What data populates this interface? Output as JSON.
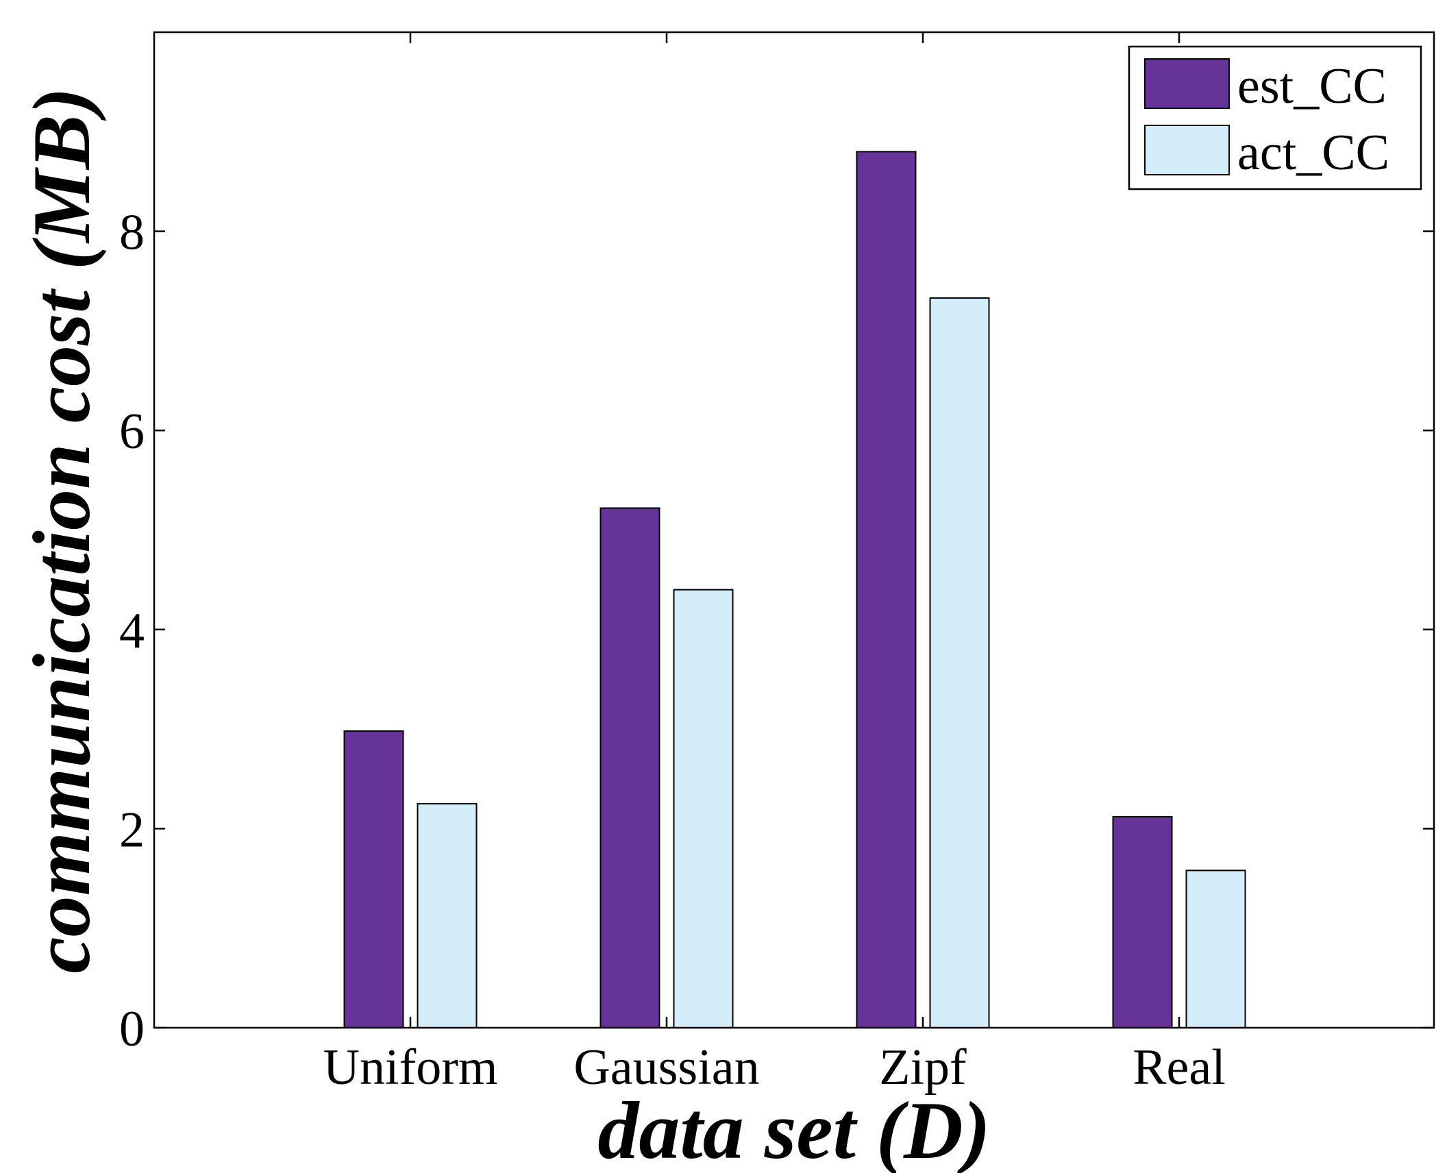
{
  "chart_data": {
    "type": "bar",
    "title": "",
    "xlabel": "data set (D)",
    "ylabel": "communication cost (MB)",
    "categories": [
      "Uniform",
      "Gaussian",
      "Zipf",
      "Real"
    ],
    "series": [
      {
        "name": "est_CC",
        "color": "#663399",
        "values": [
          2.98,
          5.22,
          8.8,
          2.12
        ]
      },
      {
        "name": "act_CC",
        "color": "#D4EDFB",
        "values": [
          2.25,
          4.4,
          7.33,
          1.58
        ]
      }
    ],
    "ylim": [
      0,
      10
    ],
    "yticks": [
      0,
      2,
      4,
      6,
      8
    ],
    "grid": false,
    "legend_position": "top-right"
  }
}
